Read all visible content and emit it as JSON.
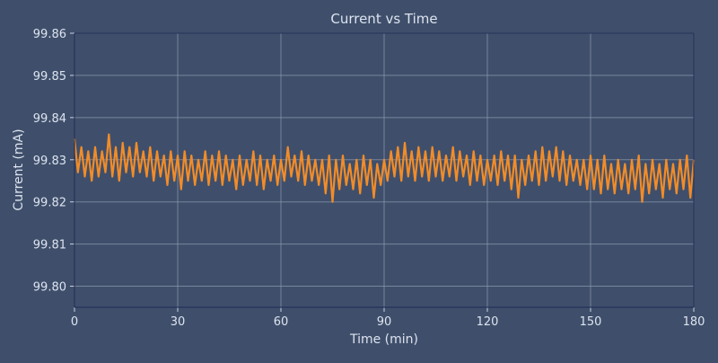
{
  "chart_data": {
    "type": "line",
    "title": "Current vs Time",
    "xlabel": "Time (min)",
    "ylabel": "Current (mA)",
    "xlim": [
      0,
      180
    ],
    "ylim": [
      99.795,
      99.86
    ],
    "xticks": [
      0,
      30,
      60,
      90,
      120,
      150,
      180
    ],
    "yticks": [
      "99.80",
      "99.81",
      "99.82",
      "99.83",
      "99.84",
      "99.85",
      "99.86"
    ],
    "grid": true,
    "colors": {
      "background": "#3f4f6b",
      "line": "#f28c28",
      "grid": "#8e9ab0",
      "axis": "#26325a"
    },
    "series": [
      {
        "x": [
          0,
          1,
          2,
          3,
          4,
          5,
          6,
          7,
          8,
          9,
          10,
          11,
          12,
          13,
          14,
          15,
          16,
          17,
          18,
          19,
          20,
          21,
          22,
          23,
          24,
          25,
          26,
          27,
          28,
          29,
          30,
          31,
          32,
          33,
          34,
          35,
          36,
          37,
          38,
          39,
          40,
          41,
          42,
          43,
          44,
          45,
          46,
          47,
          48,
          49,
          50,
          51,
          52,
          53,
          54,
          55,
          56,
          57,
          58,
          59,
          60,
          61,
          62,
          63,
          64,
          65,
          66,
          67,
          68,
          69,
          70,
          71,
          72,
          73,
          74,
          75,
          76,
          77,
          78,
          79,
          80,
          81,
          82,
          83,
          84,
          85,
          86,
          87,
          88,
          89,
          90,
          91,
          92,
          93,
          94,
          95,
          96,
          97,
          98,
          99,
          100,
          101,
          102,
          103,
          104,
          105,
          106,
          107,
          108,
          109,
          110,
          111,
          112,
          113,
          114,
          115,
          116,
          117,
          118,
          119,
          120,
          121,
          122,
          123,
          124,
          125,
          126,
          127,
          128,
          129,
          130,
          131,
          132,
          133,
          134,
          135,
          136,
          137,
          138,
          139,
          140,
          141,
          142,
          143,
          144,
          145,
          146,
          147,
          148,
          149,
          150,
          151,
          152,
          153,
          154,
          155,
          156,
          157,
          158,
          159,
          160,
          161,
          162,
          163,
          164,
          165,
          166,
          167,
          168,
          169,
          170,
          171,
          172,
          173,
          174,
          175,
          176,
          177,
          178,
          179,
          180
        ],
        "y": [
          99.835,
          99.827,
          99.833,
          99.826,
          99.832,
          99.825,
          99.833,
          99.826,
          99.832,
          99.827,
          99.836,
          99.826,
          99.833,
          99.825,
          99.834,
          99.827,
          99.833,
          99.826,
          99.834,
          99.827,
          99.832,
          99.826,
          99.833,
          99.825,
          99.832,
          99.826,
          99.831,
          99.824,
          99.832,
          99.825,
          99.831,
          99.823,
          99.832,
          99.825,
          99.831,
          99.824,
          99.83,
          99.825,
          99.832,
          99.824,
          99.831,
          99.825,
          99.832,
          99.824,
          99.831,
          99.825,
          99.83,
          99.823,
          99.831,
          99.824,
          99.83,
          99.825,
          99.832,
          99.824,
          99.831,
          99.823,
          99.83,
          99.825,
          99.831,
          99.824,
          99.83,
          99.825,
          99.833,
          99.826,
          99.831,
          99.825,
          99.832,
          99.824,
          99.831,
          99.825,
          99.83,
          99.824,
          99.83,
          99.822,
          99.831,
          99.82,
          99.83,
          99.823,
          99.831,
          99.824,
          99.829,
          99.823,
          99.83,
          99.822,
          99.831,
          99.824,
          99.83,
          99.821,
          99.829,
          99.824,
          99.83,
          99.825,
          99.832,
          99.826,
          99.833,
          99.825,
          99.834,
          99.826,
          99.832,
          99.825,
          99.833,
          99.826,
          99.832,
          99.825,
          99.833,
          99.826,
          99.832,
          99.825,
          99.831,
          99.826,
          99.833,
          99.825,
          99.832,
          99.826,
          99.831,
          99.824,
          99.832,
          99.825,
          99.831,
          99.824,
          99.83,
          99.825,
          99.831,
          99.824,
          99.832,
          99.825,
          99.831,
          99.823,
          99.831,
          99.821,
          99.83,
          99.824,
          99.831,
          99.825,
          99.832,
          99.824,
          99.833,
          99.825,
          99.832,
          99.826,
          99.833,
          99.825,
          99.832,
          99.824,
          99.831,
          99.825,
          99.83,
          99.824,
          99.83,
          99.823,
          99.831,
          99.823,
          99.83,
          99.822,
          99.831,
          99.823,
          99.829,
          99.822,
          99.83,
          99.823,
          99.829,
          99.822,
          99.83,
          99.823,
          99.831,
          99.82,
          99.829,
          99.822,
          99.83,
          99.823,
          99.829,
          99.821,
          99.83,
          99.823,
          99.829,
          99.822,
          99.83,
          99.823,
          99.831,
          99.821,
          99.83
        ]
      }
    ]
  }
}
